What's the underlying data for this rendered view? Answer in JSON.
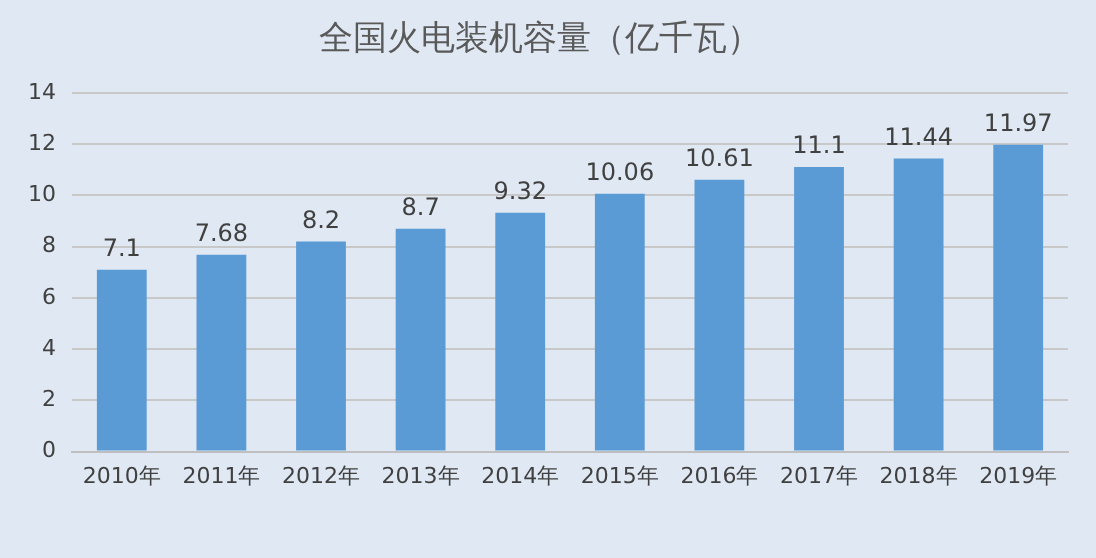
{
  "chart_data": {
    "type": "bar",
    "title": "全国火电装机容量（亿千瓦）",
    "categories": [
      "2010年",
      "2011年",
      "2012年",
      "2013年",
      "2014年",
      "2015年",
      "2016年",
      "2017年",
      "2018年",
      "2019年"
    ],
    "values": [
      7.1,
      7.68,
      8.2,
      8.7,
      9.32,
      10.06,
      10.61,
      11.1,
      11.44,
      11.97
    ],
    "color": "#5b9bd5",
    "ylim": [
      0,
      14
    ],
    "yticks": [
      0,
      2,
      4,
      6,
      8,
      10,
      12,
      14
    ],
    "grid": "y",
    "data_labels": true
  }
}
